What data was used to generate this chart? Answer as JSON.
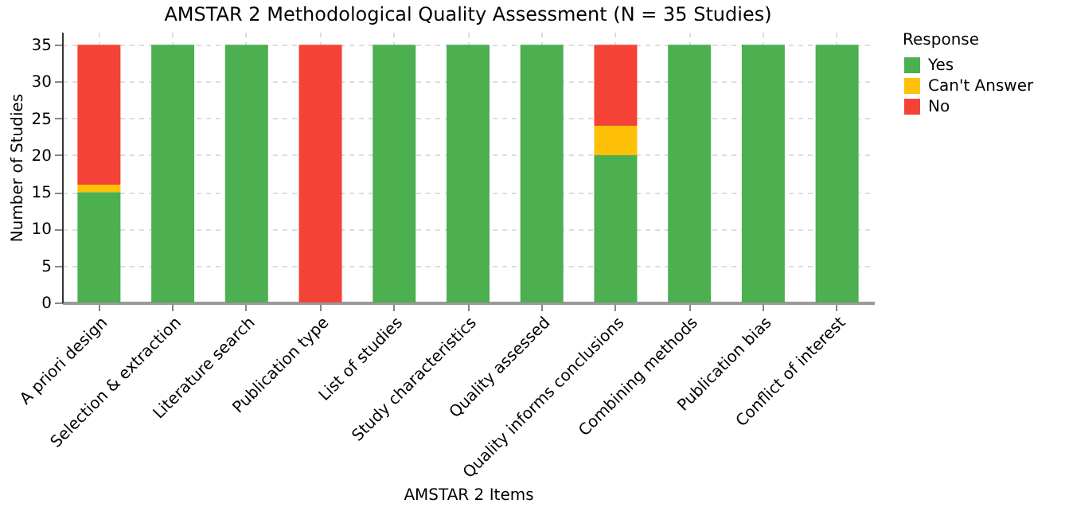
{
  "chart_data": {
    "type": "bar",
    "title": "AMSTAR 2 Methodological Quality Assessment (N = 35 Studies)",
    "xlabel": "AMSTAR 2 Items",
    "ylabel": "Number of Studies",
    "legend_title": "Response",
    "categories": [
      "A priori design",
      "Selection & extraction",
      "Literature search",
      "Publication type",
      "List of studies",
      "Study characteristics",
      "Quality assessed",
      "Quality informs conclusions",
      "Combining methods",
      "Publication bias",
      "Conflict of interest"
    ],
    "stacked": true,
    "series": [
      {
        "name": "Yes",
        "color": "#4caf50",
        "values": [
          15,
          35,
          35,
          0,
          35,
          35,
          35,
          20,
          35,
          35,
          35
        ]
      },
      {
        "name": "Can't Answer",
        "color": "#ffc107",
        "values": [
          1,
          0,
          0,
          0,
          0,
          0,
          0,
          4,
          0,
          0,
          0
        ]
      },
      {
        "name": "No",
        "color": "#f44336",
        "values": [
          19,
          0,
          0,
          35,
          0,
          0,
          0,
          11,
          0,
          0,
          0
        ]
      }
    ],
    "ylim": [
      0,
      36.75
    ],
    "yticks": [
      0,
      5,
      10,
      15,
      20,
      25,
      30,
      35
    ],
    "grid": true,
    "legend": "right"
  }
}
